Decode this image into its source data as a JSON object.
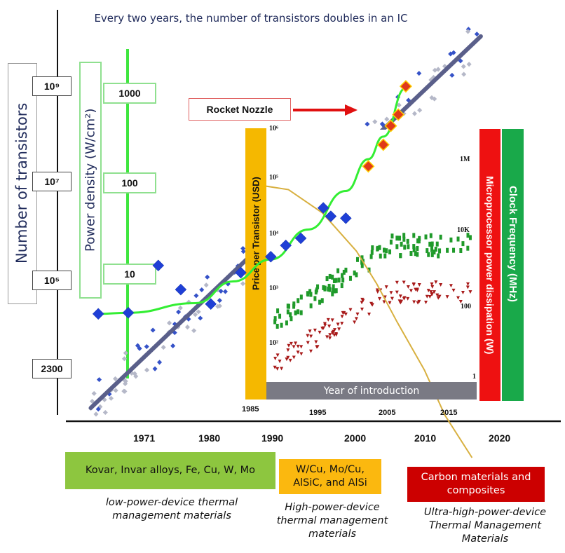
{
  "chart_data": {
    "type": "scatter",
    "title": "Every two years, the number of transistors doubles in an IC",
    "y_axes": {
      "transistors": {
        "label": "Number of transistors",
        "ticks": [
          "2300",
          "10⁵",
          "10⁷",
          "10⁹"
        ]
      },
      "power_density": {
        "label": "Power density (W/cm²)",
        "ticks": [
          "10",
          "100",
          "1000"
        ]
      }
    },
    "x_axis": {
      "ticks": [
        "1971",
        "1980",
        "1990",
        "2000",
        "2010",
        "2020"
      ]
    },
    "annotation": "Rocket Nozzle",
    "power_density_points": [
      {
        "year": 1967,
        "value": 3.5
      },
      {
        "year": 1971,
        "value": 3.6
      },
      {
        "year": 1975,
        "value": 12
      },
      {
        "year": 1978,
        "value": 6.5
      },
      {
        "year": 1982,
        "value": 4.5
      },
      {
        "year": 1986,
        "value": 10
      },
      {
        "year": 1990,
        "value": 15
      },
      {
        "year": 1992,
        "value": 20
      },
      {
        "year": 1994,
        "value": 24
      },
      {
        "year": 1997,
        "value": 52
      },
      {
        "year": 1998,
        "value": 42
      },
      {
        "year": 2000,
        "value": 40
      },
      {
        "year": 2003,
        "value": 150
      },
      {
        "year": 2005,
        "value": 260
      },
      {
        "year": 2006,
        "value": 420
      },
      {
        "year": 2007,
        "value": 560
      },
      {
        "year": 2008,
        "value": 1150
      }
    ],
    "power_density_curve": [
      [
        1967,
        3.5
      ],
      [
        1971,
        3.6
      ],
      [
        1980,
        4.6
      ],
      [
        1985,
        8
      ],
      [
        1990,
        14
      ],
      [
        1995,
        30
      ],
      [
        2000,
        80
      ],
      [
        2003,
        180
      ],
      [
        2005,
        320
      ],
      [
        2008,
        1100
      ]
    ],
    "transistor_trend": {
      "from": [
        1966,
        800
      ],
      "to": [
        2018,
        30000000000
      ]
    },
    "inset": {
      "left_axis_label": "Price per Transistor (USD)",
      "left_ticks": [
        "10⁶",
        "10⁵",
        "10⁴",
        "10³",
        "10²"
      ],
      "x_label": "Year of introduction",
      "x_ticks": [
        "1985",
        "1995",
        "2005",
        "2015"
      ],
      "right_ticks": [
        "1M",
        "10K",
        "100",
        "1"
      ],
      "right_labels": [
        "Microprocessor power dissipation (W)",
        "Clock Frequency (MHz)"
      ],
      "price_curve": [
        [
          1985,
          100000
        ],
        [
          1990,
          80000
        ],
        [
          1995,
          30000
        ],
        [
          2000,
          6000
        ],
        [
          2003,
          1500
        ],
        [
          2006,
          300
        ],
        [
          2010,
          40
        ],
        [
          2013,
          6
        ],
        [
          2017,
          1
        ]
      ]
    }
  },
  "materials": [
    {
      "label": "Kovar, Invar alloys, Fe, Cu, W, Mo",
      "caption": "low-power-device thermal management materials",
      "color": "#8dc63f"
    },
    {
      "label": "W/Cu, Mo/Cu, AlSiC, and AlSi",
      "caption": "High-power-device thermal management materials",
      "color": "#fbb80f"
    },
    {
      "label": "Carbon materials and composites",
      "caption": "Ultra-high-power-device Thermal Management Materials",
      "color": "#cc0000"
    }
  ],
  "colors": {
    "trend_line": "#5a5f8a",
    "power_curve": "#33ee33",
    "diamond": "#1f3fd6",
    "red_diamond": "#e03a1a",
    "price_bar": "#f5b800",
    "power_bar": "#ee1111",
    "clock_bar": "#19a94a"
  }
}
